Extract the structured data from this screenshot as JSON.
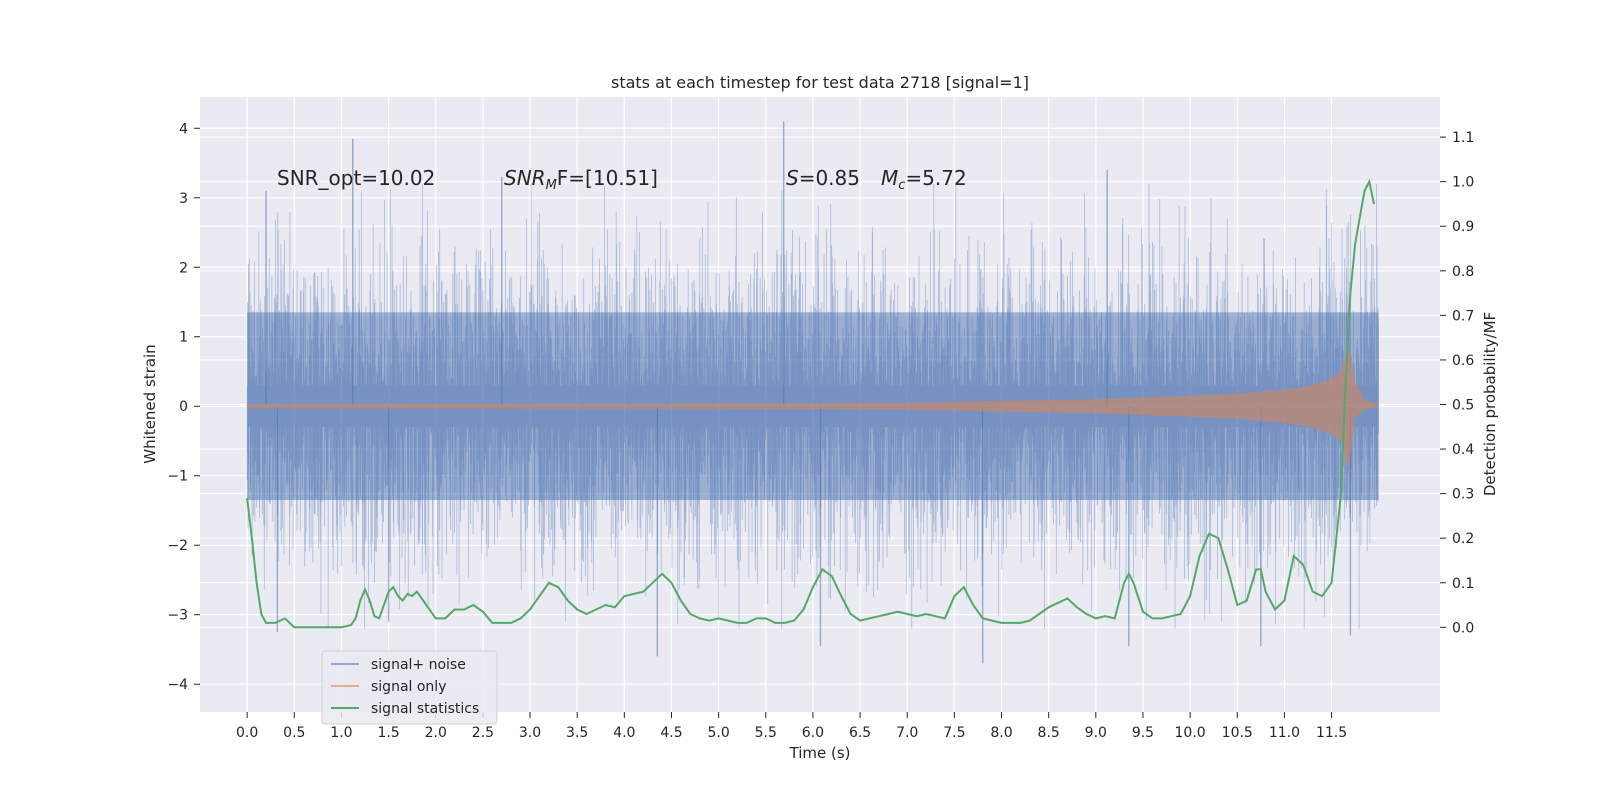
{
  "chart_data": {
    "type": "line",
    "title": "stats at each timestep for test data 2718 [signal=1]",
    "xlabel": "Time (s)",
    "ylabel_left": "Whitened strain",
    "ylabel_right": "Detection probability/MF",
    "xlim": [
      -0.5,
      12.65
    ],
    "ylim_left": [
      -4.4,
      4.45
    ],
    "ylim_right": [
      -0.19,
      1.19
    ],
    "x_ticks": [
      0.0,
      0.5,
      1.0,
      1.5,
      2.0,
      2.5,
      3.0,
      3.5,
      4.0,
      4.5,
      5.0,
      5.5,
      6.0,
      6.5,
      7.0,
      7.5,
      8.0,
      8.5,
      9.0,
      9.5,
      10.0,
      10.5,
      11.0,
      11.5
    ],
    "x_tick_labels": [
      "0.0",
      "0.5",
      "1.0",
      "1.5",
      "2.0",
      "2.5",
      "3.0",
      "3.5",
      "4.0",
      "4.5",
      "5.0",
      "5.5",
      "6.0",
      "6.5",
      "7.0",
      "7.5",
      "8.0",
      "8.5",
      "9.0",
      "9.5",
      "10.0",
      "10.5",
      "11.0",
      "11.5"
    ],
    "y_ticks_left": [
      4,
      3,
      2,
      1,
      0,
      -1,
      -2,
      -3,
      -4
    ],
    "y_tick_labels_left": [
      "4",
      "3",
      "2",
      "1",
      "0",
      "−1",
      "−2",
      "−3",
      "−4"
    ],
    "y_ticks_right": [
      1.1,
      1.0,
      0.9,
      0.8,
      0.7,
      0.6,
      0.5,
      0.4,
      0.3,
      0.2,
      0.1,
      0.0
    ],
    "y_tick_labels_right": [
      "1.1",
      "1.0",
      "0.9",
      "0.8",
      "0.7",
      "0.6",
      "0.5",
      "0.4",
      "0.3",
      "0.2",
      "0.1",
      "0.0"
    ],
    "annotations": {
      "snr_opt": "SNR_opt=10.02",
      "snr_mf_main": "SNR",
      "snr_mf_sub": "M",
      "snr_mf_rest": "F=[10.51]",
      "s_sym": "S",
      "s_val": "=0.85",
      "mc_sym": "M",
      "mc_sub": "c",
      "mc_val": "=5.72"
    },
    "legend": {
      "placement": "lower-left",
      "entries": [
        "signal+ noise",
        "signal only",
        "signal statistics"
      ]
    },
    "series": [
      {
        "name": "signal+ noise",
        "axis": "left",
        "color": "#4c72b0",
        "time_range": [
          0.0,
          12.0
        ],
        "typical_amplitude": 1.3,
        "extremes": [
          {
            "t": 0.2,
            "v": 3.1
          },
          {
            "t": 1.12,
            "v": 3.85
          },
          {
            "t": 2.7,
            "v": 3.3
          },
          {
            "t": 5.69,
            "v": 4.1
          },
          {
            "t": 9.12,
            "v": 3.4
          },
          {
            "t": 0.32,
            "v": -3.25
          },
          {
            "t": 1.5,
            "v": -3.1
          },
          {
            "t": 4.35,
            "v": -3.6
          },
          {
            "t": 6.08,
            "v": -3.45
          },
          {
            "t": 7.8,
            "v": -3.7
          },
          {
            "t": 9.35,
            "v": -3.45
          },
          {
            "t": 10.75,
            "v": -3.45
          },
          {
            "t": 11.7,
            "v": -3.3
          }
        ]
      },
      {
        "name": "signal only",
        "axis": "left",
        "color": "#dd8452",
        "envelope_t": [
          0.0,
          3.0,
          6.0,
          7.0,
          8.0,
          9.0,
          10.0,
          10.5,
          11.0,
          11.3,
          11.5,
          11.6,
          11.68,
          11.75,
          11.85,
          11.95,
          12.0
        ],
        "envelope_amp": [
          0.03,
          0.035,
          0.04,
          0.05,
          0.08,
          0.1,
          0.15,
          0.18,
          0.24,
          0.3,
          0.4,
          0.5,
          0.92,
          0.35,
          0.1,
          0.05,
          0.04
        ]
      },
      {
        "name": "signal statistics",
        "axis": "right",
        "color": "#55a868",
        "t": [
          0.0,
          0.05,
          0.1,
          0.15,
          0.2,
          0.3,
          0.4,
          0.5,
          0.6,
          0.7,
          0.8,
          0.9,
          1.0,
          1.1,
          1.15,
          1.2,
          1.25,
          1.3,
          1.35,
          1.4,
          1.45,
          1.5,
          1.55,
          1.6,
          1.65,
          1.7,
          1.75,
          1.8,
          1.9,
          2.0,
          2.1,
          2.2,
          2.3,
          2.4,
          2.5,
          2.6,
          2.7,
          2.8,
          2.9,
          3.0,
          3.1,
          3.2,
          3.3,
          3.4,
          3.5,
          3.6,
          3.7,
          3.8,
          3.9,
          4.0,
          4.1,
          4.2,
          4.3,
          4.4,
          4.5,
          4.6,
          4.7,
          4.8,
          4.9,
          5.0,
          5.1,
          5.2,
          5.3,
          5.4,
          5.5,
          5.6,
          5.7,
          5.8,
          5.9,
          6.0,
          6.1,
          6.2,
          6.3,
          6.4,
          6.5,
          6.6,
          6.7,
          6.8,
          6.9,
          7.0,
          7.1,
          7.2,
          7.3,
          7.4,
          7.5,
          7.6,
          7.7,
          7.8,
          7.9,
          8.0,
          8.1,
          8.2,
          8.3,
          8.4,
          8.5,
          8.6,
          8.7,
          8.8,
          8.9,
          9.0,
          9.1,
          9.2,
          9.3,
          9.35,
          9.4,
          9.5,
          9.6,
          9.7,
          9.8,
          9.9,
          10.0,
          10.1,
          10.2,
          10.3,
          10.4,
          10.5,
          10.6,
          10.7,
          10.75,
          10.8,
          10.9,
          11.0,
          11.1,
          11.2,
          11.3,
          11.4,
          11.5,
          11.55,
          11.6,
          11.65,
          11.7,
          11.75,
          11.8,
          11.85,
          11.9,
          11.95
        ],
        "values": [
          0.29,
          0.2,
          0.1,
          0.03,
          0.01,
          0.01,
          0.02,
          0.0,
          0.0,
          0.0,
          0.0,
          0.0,
          0.0,
          0.005,
          0.02,
          0.06,
          0.085,
          0.06,
          0.025,
          0.02,
          0.05,
          0.08,
          0.09,
          0.07,
          0.06,
          0.075,
          0.07,
          0.08,
          0.05,
          0.02,
          0.02,
          0.04,
          0.04,
          0.05,
          0.035,
          0.01,
          0.01,
          0.01,
          0.02,
          0.04,
          0.07,
          0.1,
          0.09,
          0.06,
          0.04,
          0.03,
          0.04,
          0.05,
          0.045,
          0.07,
          0.075,
          0.08,
          0.1,
          0.12,
          0.1,
          0.06,
          0.03,
          0.02,
          0.015,
          0.02,
          0.015,
          0.01,
          0.01,
          0.02,
          0.02,
          0.01,
          0.01,
          0.015,
          0.04,
          0.09,
          0.13,
          0.115,
          0.07,
          0.03,
          0.015,
          0.02,
          0.025,
          0.03,
          0.035,
          0.03,
          0.025,
          0.03,
          0.025,
          0.02,
          0.07,
          0.09,
          0.05,
          0.02,
          0.015,
          0.01,
          0.01,
          0.01,
          0.015,
          0.03,
          0.045,
          0.055,
          0.065,
          0.045,
          0.03,
          0.02,
          0.025,
          0.02,
          0.1,
          0.12,
          0.1,
          0.035,
          0.02,
          0.02,
          0.025,
          0.03,
          0.07,
          0.16,
          0.21,
          0.2,
          0.13,
          0.05,
          0.06,
          0.13,
          0.13,
          0.08,
          0.04,
          0.06,
          0.16,
          0.14,
          0.08,
          0.07,
          0.1,
          0.2,
          0.3,
          0.55,
          0.75,
          0.86,
          0.92,
          0.98,
          1.0,
          0.95
        ]
      }
    ]
  }
}
